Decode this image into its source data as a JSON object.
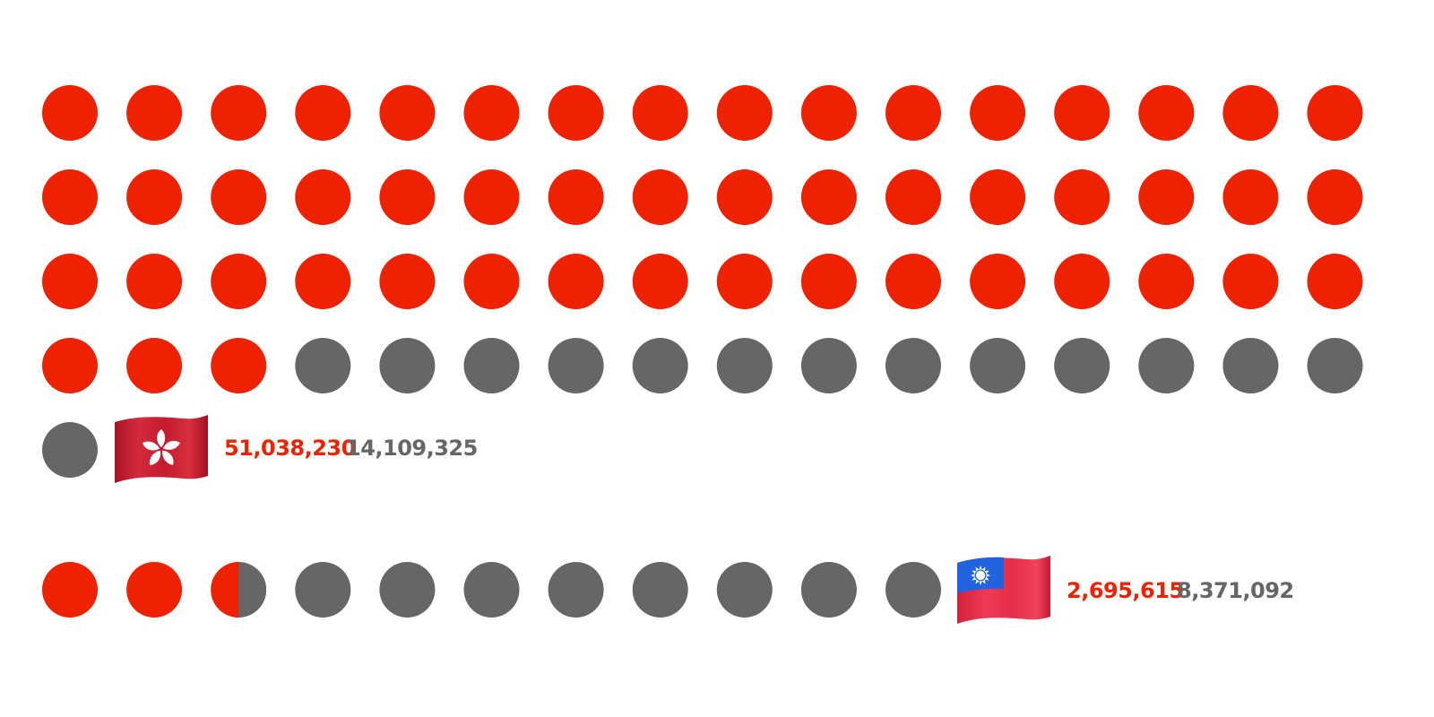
{
  "colors": {
    "primary": "#ee2200",
    "secondary": "#666666",
    "background": "#ffffff"
  },
  "chart_data": {
    "type": "waffle",
    "dots_per_row": 16,
    "series": [
      {
        "flag_icon": "hong-kong-flag-icon",
        "primary_value": 51038230,
        "secondary_value": 14109325,
        "primary_label": "51,038,230",
        "secondary_label": "14,109,325",
        "total_dots": 65,
        "primary_dots": 51,
        "secondary_dots": 14
      },
      {
        "flag_icon": "taiwan-flag-icon",
        "primary_value": 2695615,
        "secondary_value": 8371092,
        "primary_label": "2,695,615",
        "secondary_label": "8,371,092",
        "total_dots": 11,
        "primary_dots": 2.5,
        "secondary_dots": 8.5
      }
    ]
  }
}
